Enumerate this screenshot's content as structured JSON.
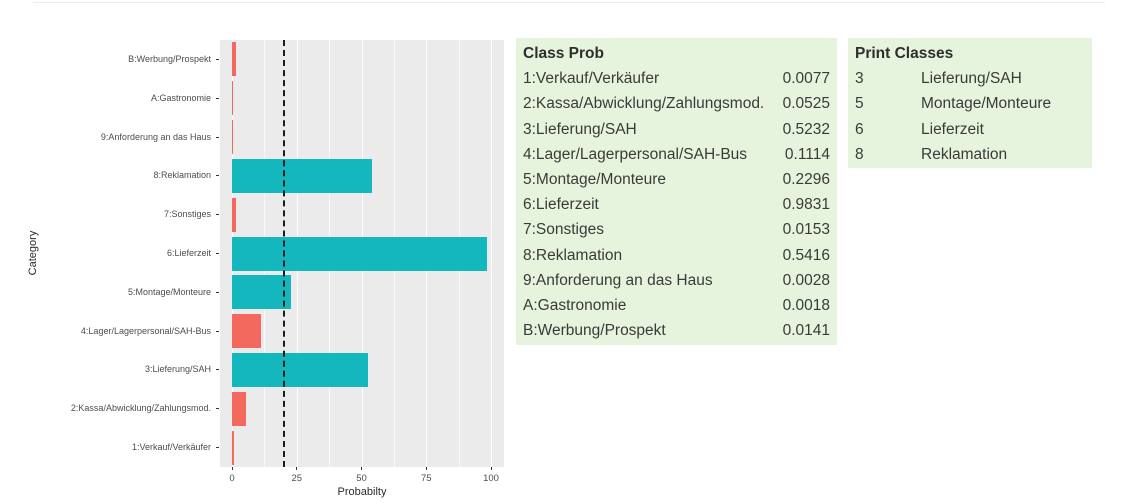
{
  "colors": {
    "bar_above": "#14B7BD",
    "bar_below": "#F4695E",
    "plot_bg": "#EBEBEB",
    "grid": "#FFFFFF",
    "threshold_line": "#1C1C1C",
    "panel_bg": "#E6F4DE",
    "panel_text": "#3A3A3A",
    "axis_text": "#4D4D4D"
  },
  "chart_data": {
    "type": "bar",
    "orientation": "horizontal",
    "title": "",
    "xlabel": "Probabilty",
    "ylabel": "Category",
    "xlim": [
      0,
      100
    ],
    "xticks": [
      0,
      25,
      50,
      75,
      100
    ],
    "grid": "major and minor vertical white gridlines on gray panel",
    "threshold_x": 20,
    "threshold_style": "black dashed vertical line",
    "legend_position": "none",
    "categories": [
      "B:Werbung/Prospekt",
      "A:Gastronomie",
      "9:Anforderung an das Haus",
      "8:Reklamation",
      "7:Sonstiges",
      "6:Lieferzeit",
      "5:Montage/Monteure",
      "4:Lager/Lagerpersonal/SAH-Bus",
      "3:Lieferung/SAH",
      "2:Kassa/Abwicklung/Zahlungsmod.",
      "1:Verkauf/Verkäufer"
    ],
    "values": [
      1.41,
      0.18,
      0.28,
      54.16,
      1.53,
      98.31,
      22.96,
      11.14,
      52.32,
      5.25,
      0.77
    ],
    "color_rule": "teal if value >= threshold_x else salmon"
  },
  "class_prob_panel": {
    "title": "Class Prob",
    "rows": [
      {
        "label": "1:Verkauf/Verkäufer",
        "value": "0.0077"
      },
      {
        "label": "2:Kassa/Abwicklung/Zahlungsmod.",
        "value": "0.0525"
      },
      {
        "label": "3:Lieferung/SAH",
        "value": "0.5232"
      },
      {
        "label": "4:Lager/Lagerpersonal/SAH-Bus",
        "value": "0.1114"
      },
      {
        "label": "5:Montage/Monteure",
        "value": "0.2296"
      },
      {
        "label": "6:Lieferzeit",
        "value": "0.9831"
      },
      {
        "label": "7:Sonstiges",
        "value": "0.0153"
      },
      {
        "label": "8:Reklamation",
        "value": "0.5416"
      },
      {
        "label": "9:Anforderung an das Haus",
        "value": "0.0028"
      },
      {
        "label": "A:Gastronomie",
        "value": "0.0018"
      },
      {
        "label": "B:Werbung/Prospekt",
        "value": "0.0141"
      }
    ]
  },
  "print_classes_panel": {
    "title": "Print Classes",
    "rows": [
      {
        "id": "3",
        "label": "Lieferung/SAH"
      },
      {
        "id": "5",
        "label": "Montage/Monteure"
      },
      {
        "id": "6",
        "label": "Lieferzeit"
      },
      {
        "id": "8",
        "label": "Reklamation"
      }
    ]
  }
}
